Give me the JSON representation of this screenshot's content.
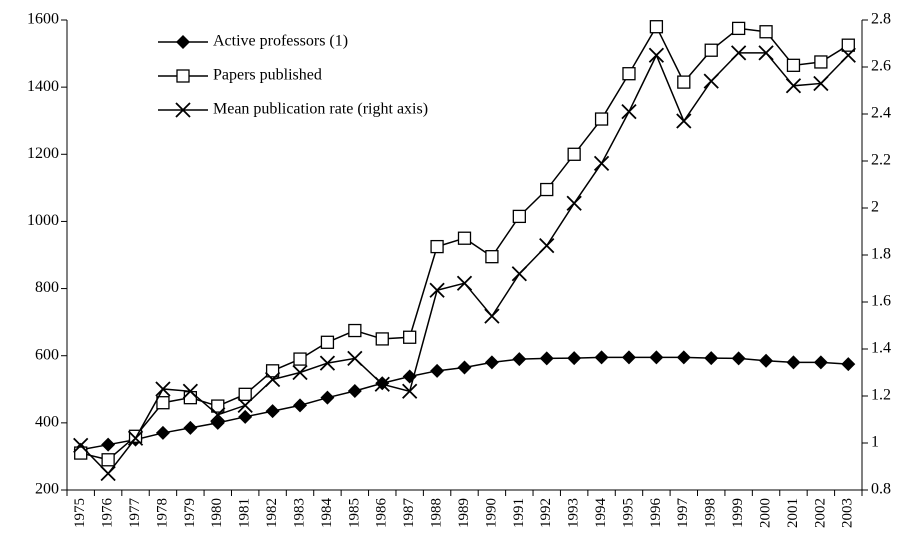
{
  "chart_data": {
    "type": "line",
    "categories": [
      "1975",
      "1976",
      "1977",
      "1978",
      "1979",
      "1980",
      "1981",
      "1982",
      "1983",
      "1984",
      "1985",
      "1986",
      "1987",
      "1988",
      "1989",
      "1990",
      "1991",
      "1992",
      "1993",
      "1994",
      "1995",
      "1996",
      "1997",
      "1998",
      "1999",
      "2000",
      "2001",
      "2002",
      "2003"
    ],
    "series": [
      {
        "name": "Active professors (1)",
        "color": "#000000",
        "marker": "diamond",
        "values": [
          320,
          335,
          350,
          370,
          385,
          400,
          418,
          435,
          452,
          475,
          495,
          518,
          538,
          555,
          565,
          580,
          590,
          592,
          593,
          595,
          595,
          595,
          595,
          593,
          592,
          585,
          580,
          580,
          575
        ]
      },
      {
        "name": "Papers published",
        "color": "#000000",
        "marker": "square",
        "values": [
          310,
          290,
          360,
          460,
          475,
          450,
          485,
          555,
          590,
          640,
          675,
          650,
          655,
          925,
          950,
          895,
          1015,
          1095,
          1200,
          1305,
          1440,
          1580,
          1415,
          1510,
          1575,
          1565,
          1465,
          1475,
          1525
        ]
      },
      {
        "name": "Mean publication rate (right axis)",
        "color": "#000000",
        "marker": "x",
        "axis": "y2",
        "values": [
          0.99,
          0.87,
          1.02,
          1.23,
          1.22,
          1.12,
          1.16,
          1.27,
          1.3,
          1.34,
          1.36,
          1.25,
          1.22,
          1.65,
          1.68,
          1.54,
          1.72,
          1.84,
          2.02,
          2.19,
          2.41,
          2.65,
          2.37,
          2.54,
          2.66,
          2.66,
          2.52,
          2.53,
          2.65
        ]
      }
    ],
    "ylim": [
      200,
      1600
    ],
    "yticks": [
      200,
      400,
      600,
      800,
      1000,
      1200,
      1400,
      1600
    ],
    "y2lim": [
      0.8,
      2.8
    ],
    "y2ticks": [
      0.8,
      1,
      1.2,
      1.4,
      1.6,
      1.8,
      2,
      2.2,
      2.4,
      2.6,
      2.8
    ],
    "legend": "top-left",
    "grid": false
  }
}
